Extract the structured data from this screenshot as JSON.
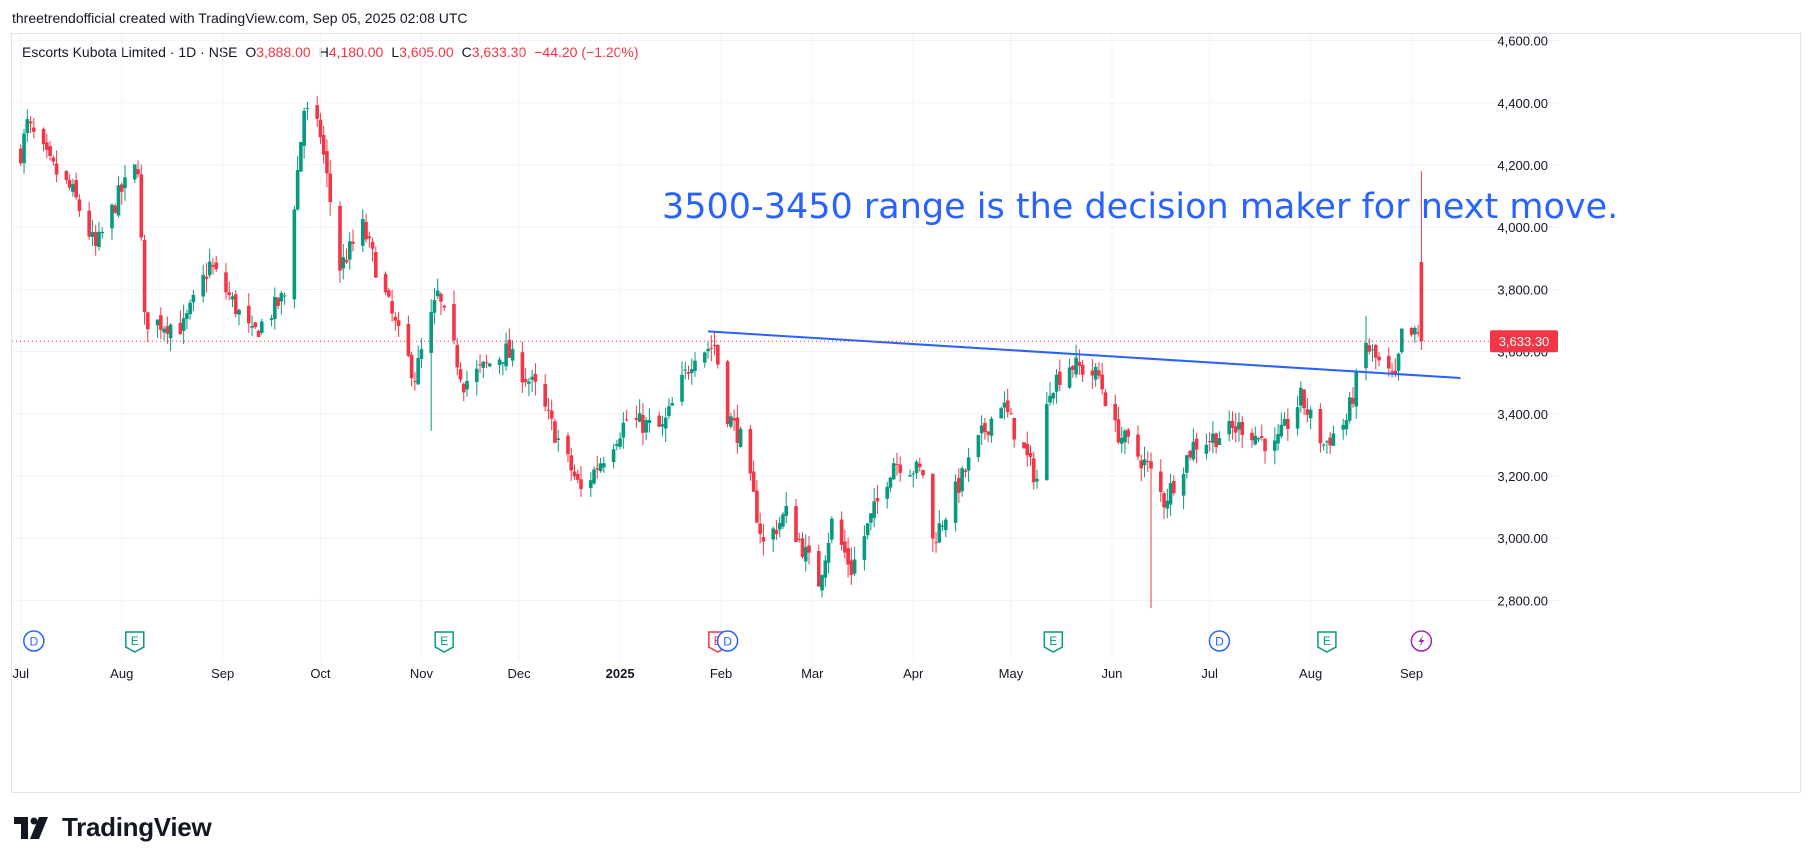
{
  "header": {
    "attribution": "threetrendofficial created with TradingView.com, Sep 05, 2025 02:08 UTC"
  },
  "legend": {
    "symbol": "Escorts Kubota Limited · 1D · NSE",
    "open_label": "O",
    "open": "3,888.00",
    "high_label": "H",
    "high": "4,180.00",
    "low_label": "L",
    "low": "3,605.00",
    "close_label": "C",
    "close": "3,633.30",
    "change": "−44.20 (−1.20%)"
  },
  "annotation": {
    "text": "3500-3450 range is the decision maker for next move."
  },
  "price_tag": "3,633.30",
  "brand": {
    "name": "TradingView"
  },
  "colors": {
    "up": "#089981",
    "down": "#f23645",
    "trendline": "#2962ff",
    "annotation": "#2962ff",
    "grid": "#f0f3fa",
    "axis_text": "#131722"
  },
  "chart_data": {
    "type": "candlestick",
    "title": "Escorts Kubota Limited · 1D · NSE",
    "ylim": [
      2720,
      4640
    ],
    "y_ticks": [
      2800,
      3000,
      3200,
      3400,
      3600,
      3800,
      4000,
      4200,
      4400,
      4600
    ],
    "y_tick_labels": [
      "2,800.00",
      "3,000.00",
      "3,200.00",
      "3,400.00",
      "3,600.00",
      "3,800.00",
      "4,000.00",
      "4,200.00",
      "4,400.00",
      "4,600.00"
    ],
    "x_labels": [
      "Jul",
      "Aug",
      "Sep",
      "Oct",
      "Nov",
      "Dec",
      "2025",
      "Feb",
      "Mar",
      "Apr",
      "May",
      "Jun",
      "Jul",
      "Aug",
      "Sep"
    ],
    "last_price": 3633.3,
    "trendline": {
      "from": {
        "date": "2025-01-28",
        "price": 3665
      },
      "to": {
        "date": "2025-09-16",
        "price": 3515
      }
    },
    "events": [
      {
        "type": "D",
        "date": "2024-07-05"
      },
      {
        "type": "E",
        "date": "2024-08-05"
      },
      {
        "type": "E",
        "date": "2024-11-08"
      },
      {
        "type": "E",
        "date": "2025-01-31"
      },
      {
        "type": "D",
        "date": "2025-02-03"
      },
      {
        "type": "E",
        "date": "2025-05-14"
      },
      {
        "type": "D",
        "date": "2025-07-04"
      },
      {
        "type": "E",
        "date": "2025-08-06"
      },
      {
        "type": "split",
        "date": "2025-09-04"
      }
    ],
    "series": [
      {
        "name": "",
        "waypoints": [
          {
            "date": "2024-07-01",
            "close": 4240
          },
          {
            "date": "2024-07-03",
            "close": 4330
          },
          {
            "date": "2024-07-10",
            "close": 4200
          },
          {
            "date": "2024-07-17",
            "close": 4110
          },
          {
            "date": "2024-07-24",
            "close": 3930
          },
          {
            "date": "2024-07-31",
            "close": 4100
          },
          {
            "date": "2024-08-06",
            "close": 4200
          },
          {
            "date": "2024-08-08",
            "close": 3700
          },
          {
            "date": "2024-08-20",
            "close": 3680
          },
          {
            "date": "2024-08-28",
            "close": 3880
          },
          {
            "date": "2024-09-04",
            "close": 3760
          },
          {
            "date": "2024-09-10",
            "close": 3650
          },
          {
            "date": "2024-09-20",
            "close": 3780
          },
          {
            "date": "2024-09-26",
            "close": 4380
          },
          {
            "date": "2024-10-01",
            "close": 4300
          },
          {
            "date": "2024-10-07",
            "close": 3870
          },
          {
            "date": "2024-10-14",
            "close": 4000
          },
          {
            "date": "2024-10-25",
            "close": 3650
          },
          {
            "date": "2024-10-30",
            "close": 3520
          },
          {
            "date": "2024-11-06",
            "close": 3780
          },
          {
            "date": "2024-11-14",
            "close": 3500
          },
          {
            "date": "2024-11-27",
            "close": 3600
          },
          {
            "date": "2024-12-06",
            "close": 3480
          },
          {
            "date": "2024-12-20",
            "close": 3150
          },
          {
            "date": "2025-01-03",
            "close": 3380
          },
          {
            "date": "2025-01-14",
            "close": 3350
          },
          {
            "date": "2025-01-24",
            "close": 3600
          },
          {
            "date": "2025-01-30",
            "close": 3620
          },
          {
            "date": "2025-02-03",
            "close": 3400
          },
          {
            "date": "2025-02-07",
            "close": 3320
          },
          {
            "date": "2025-02-14",
            "close": 2980
          },
          {
            "date": "2025-02-21",
            "close": 3080
          },
          {
            "date": "2025-03-03",
            "close": 2860
          },
          {
            "date": "2025-03-07",
            "close": 3050
          },
          {
            "date": "2025-03-13",
            "close": 2900
          },
          {
            "date": "2025-03-26",
            "close": 3250
          },
          {
            "date": "2025-04-04",
            "close": 3210
          },
          {
            "date": "2025-04-07",
            "close": 2990
          },
          {
            "date": "2025-04-22",
            "close": 3330
          },
          {
            "date": "2025-04-28",
            "close": 3440
          },
          {
            "date": "2025-05-07",
            "close": 3230
          },
          {
            "date": "2025-05-09",
            "close": 3190
          },
          {
            "date": "2025-05-13",
            "close": 3490
          },
          {
            "date": "2025-05-19",
            "close": 3560
          },
          {
            "date": "2025-05-28",
            "close": 3520
          },
          {
            "date": "2025-06-02",
            "close": 3350
          },
          {
            "date": "2025-06-12",
            "close": 3230
          },
          {
            "date": "2025-06-17",
            "close": 3120
          },
          {
            "date": "2025-06-26",
            "close": 3300
          },
          {
            "date": "2025-07-11",
            "close": 3360
          },
          {
            "date": "2025-07-21",
            "close": 3290
          },
          {
            "date": "2025-07-29",
            "close": 3450
          },
          {
            "date": "2025-08-05",
            "close": 3300
          },
          {
            "date": "2025-08-12",
            "close": 3380
          },
          {
            "date": "2025-08-18",
            "close": 3620
          },
          {
            "date": "2025-08-22",
            "close": 3560
          },
          {
            "date": "2025-08-27",
            "close": 3500
          },
          {
            "date": "2025-08-29",
            "close": 3650
          },
          {
            "date": "2025-09-03",
            "close": 3650
          },
          {
            "date": "2025-09-04",
            "close": 3633.3
          }
        ]
      }
    ],
    "last_candle": {
      "open": 3888.0,
      "high": 4180.0,
      "low": 3605.0,
      "close": 3633.3
    }
  }
}
